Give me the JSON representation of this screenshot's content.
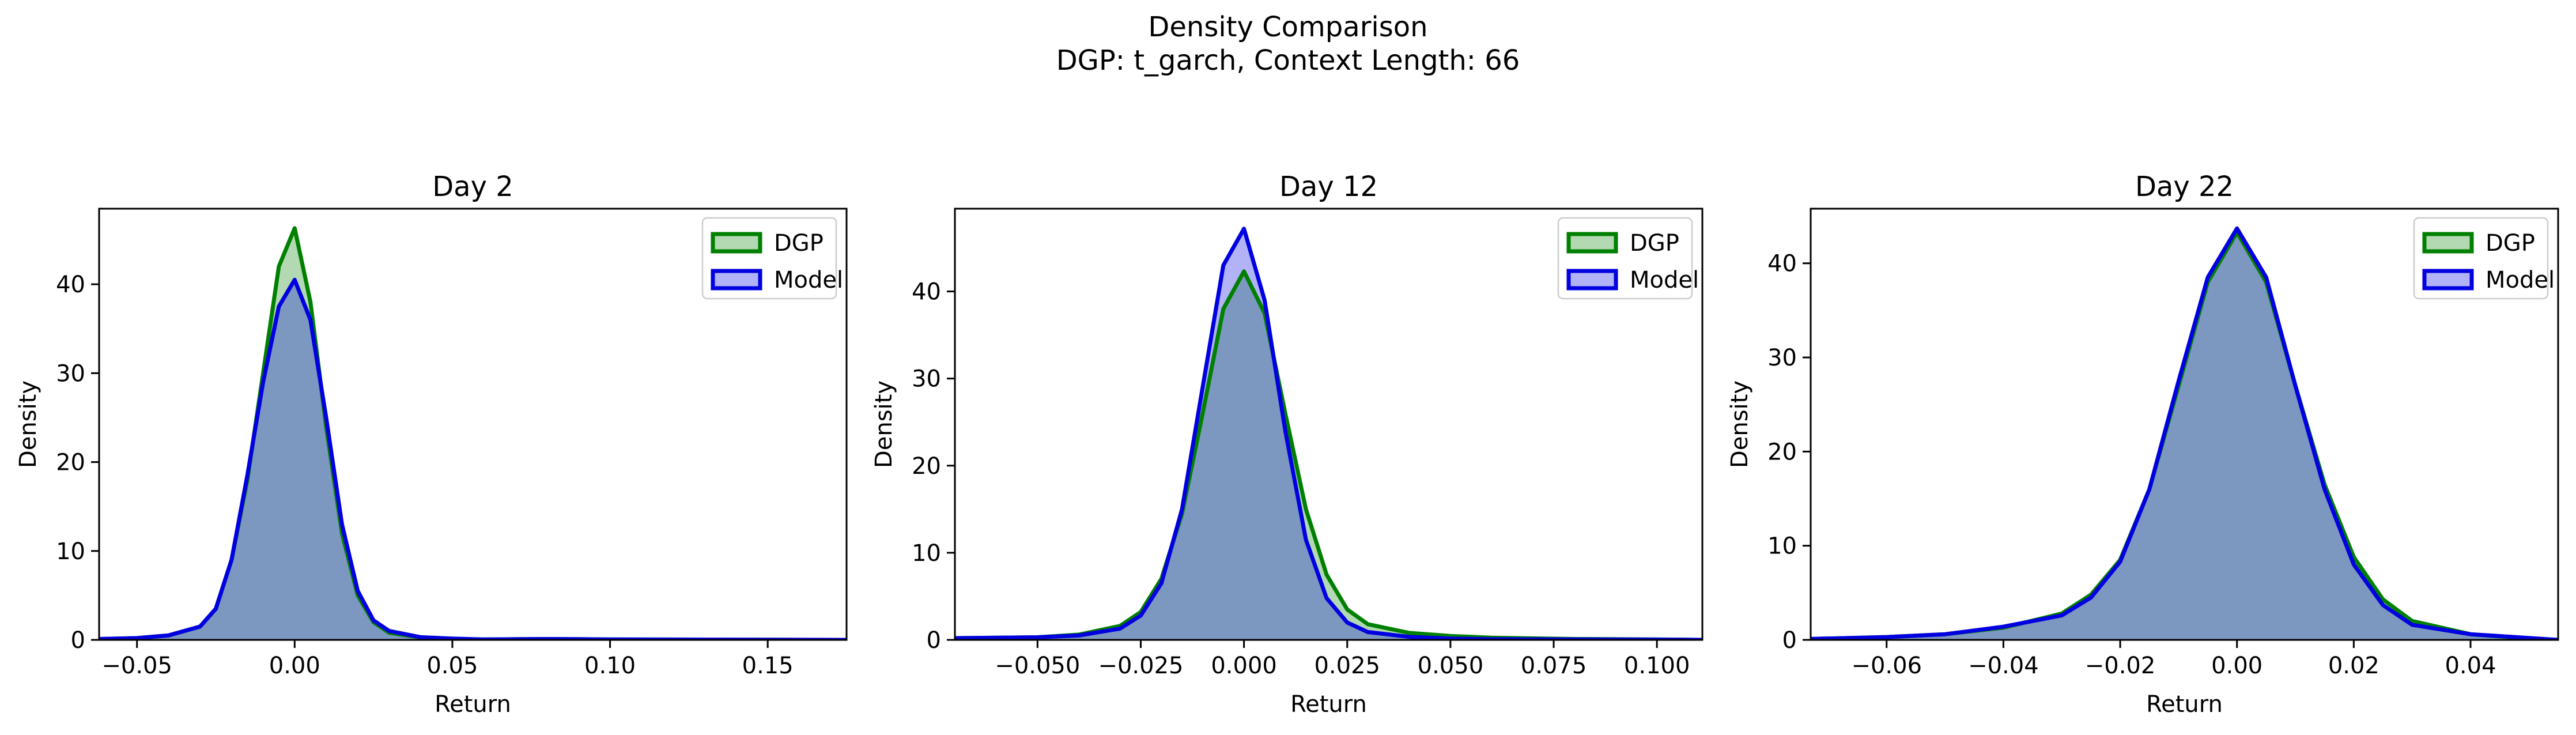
{
  "figure": {
    "title": "Density Comparison",
    "subtitle": "DGP: t_garch, Context Length: 66"
  },
  "colors": {
    "dgp": "#008000",
    "model": "#0000e0",
    "overlap": "#7f99cc"
  },
  "chart_data": [
    {
      "type": "area",
      "title": "Day 2",
      "xlabel": "Return",
      "ylabel": "Density",
      "xlim": [
        -0.062,
        0.175
      ],
      "ylim": [
        0,
        48.5
      ],
      "xticks": [
        -0.05,
        0.0,
        0.05,
        0.1,
        0.15
      ],
      "xtick_labels": [
        "−0.05",
        "0.00",
        "0.05",
        "0.10",
        "0.15"
      ],
      "yticks": [
        0,
        10,
        20,
        30,
        40
      ],
      "ytick_labels": [
        "0",
        "10",
        "20",
        "30",
        "40"
      ],
      "legend": "top-right",
      "series": [
        {
          "name": "DGP",
          "x": [
            -0.062,
            -0.05,
            -0.04,
            -0.03,
            -0.025,
            -0.02,
            -0.015,
            -0.01,
            -0.005,
            0.0,
            0.005,
            0.01,
            0.015,
            0.02,
            0.025,
            0.03,
            0.04,
            0.05,
            0.06,
            0.08,
            0.1,
            0.13,
            0.175
          ],
          "y": [
            0.1,
            0.2,
            0.5,
            1.5,
            3.5,
            9.0,
            18.0,
            30.0,
            42.0,
            46.3,
            38.0,
            24.0,
            12.0,
            5.0,
            2.0,
            0.8,
            0.25,
            0.1,
            0.05,
            0.1,
            0.05,
            0.03,
            0.0
          ]
        },
        {
          "name": "Model",
          "x": [
            -0.062,
            -0.05,
            -0.04,
            -0.03,
            -0.025,
            -0.02,
            -0.015,
            -0.01,
            -0.005,
            0.0,
            0.005,
            0.01,
            0.015,
            0.02,
            0.025,
            0.03,
            0.04,
            0.05,
            0.06,
            0.08,
            0.1,
            0.13,
            0.175
          ],
          "y": [
            0.1,
            0.2,
            0.5,
            1.5,
            3.5,
            9.0,
            18.5,
            29.0,
            37.5,
            40.5,
            36.0,
            25.0,
            13.0,
            5.5,
            2.2,
            1.0,
            0.3,
            0.15,
            0.05,
            0.1,
            0.05,
            0.03,
            0.0
          ]
        }
      ]
    },
    {
      "type": "area",
      "title": "Day 12",
      "xlabel": "Return",
      "ylabel": "Density",
      "xlim": [
        -0.07,
        0.111
      ],
      "ylim": [
        0,
        49.5
      ],
      "xticks": [
        -0.05,
        -0.025,
        0.0,
        0.025,
        0.05,
        0.075,
        0.1
      ],
      "xtick_labels": [
        "−0.050",
        "−0.025",
        "0.000",
        "0.025",
        "0.050",
        "0.075",
        "0.100"
      ],
      "yticks": [
        0,
        10,
        20,
        30,
        40
      ],
      "ytick_labels": [
        "0",
        "10",
        "20",
        "30",
        "40"
      ],
      "legend": "top-right",
      "series": [
        {
          "name": "DGP",
          "x": [
            -0.07,
            -0.05,
            -0.04,
            -0.03,
            -0.025,
            -0.02,
            -0.015,
            -0.01,
            -0.005,
            0.0,
            0.005,
            0.01,
            0.015,
            0.02,
            0.025,
            0.03,
            0.04,
            0.05,
            0.06,
            0.08,
            0.1,
            0.111
          ],
          "y": [
            0.2,
            0.3,
            0.6,
            1.6,
            3.2,
            7.0,
            14.5,
            26.0,
            38.0,
            42.3,
            37.5,
            26.0,
            15.0,
            7.5,
            3.5,
            1.8,
            0.8,
            0.45,
            0.25,
            0.1,
            0.05,
            0.0
          ]
        },
        {
          "name": "Model",
          "x": [
            -0.07,
            -0.05,
            -0.04,
            -0.03,
            -0.025,
            -0.02,
            -0.015,
            -0.01,
            -0.005,
            0.0,
            0.005,
            0.01,
            0.015,
            0.02,
            0.025,
            0.03,
            0.04,
            0.05,
            0.06,
            0.08,
            0.1,
            0.111
          ],
          "y": [
            0.2,
            0.3,
            0.5,
            1.3,
            2.8,
            6.5,
            15.0,
            29.0,
            43.0,
            47.2,
            39.0,
            24.0,
            11.5,
            4.8,
            2.0,
            0.9,
            0.35,
            0.15,
            0.08,
            0.05,
            0.03,
            0.0
          ]
        }
      ]
    },
    {
      "type": "area",
      "title": "Day 22",
      "xlabel": "Return",
      "ylabel": "Density",
      "xlim": [
        -0.073,
        0.055
      ],
      "ylim": [
        0,
        45.8
      ],
      "xticks": [
        -0.06,
        -0.04,
        -0.02,
        0.0,
        0.02,
        0.04
      ],
      "xtick_labels": [
        "−0.06",
        "−0.04",
        "−0.02",
        "0.00",
        "0.02",
        "0.04"
      ],
      "yticks": [
        0,
        10,
        20,
        30,
        40
      ],
      "ytick_labels": [
        "0",
        "10",
        "20",
        "30",
        "40"
      ],
      "legend": "top-right",
      "series": [
        {
          "name": "DGP",
          "x": [
            -0.073,
            -0.06,
            -0.05,
            -0.04,
            -0.03,
            -0.025,
            -0.02,
            -0.015,
            -0.01,
            -0.005,
            0.0,
            0.005,
            0.01,
            0.015,
            0.02,
            0.025,
            0.03,
            0.04,
            0.05,
            0.055
          ],
          "y": [
            0.1,
            0.3,
            0.6,
            1.3,
            2.8,
            4.8,
            8.5,
            16.0,
            27.0,
            38.0,
            43.3,
            38.0,
            27.0,
            16.5,
            8.8,
            4.3,
            2.0,
            0.6,
            0.15,
            0.0
          ]
        },
        {
          "name": "Model",
          "x": [
            -0.073,
            -0.06,
            -0.05,
            -0.04,
            -0.03,
            -0.025,
            -0.02,
            -0.015,
            -0.01,
            -0.005,
            0.0,
            0.005,
            0.01,
            0.015,
            0.02,
            0.025,
            0.03,
            0.04,
            0.05,
            0.055
          ],
          "y": [
            0.1,
            0.3,
            0.6,
            1.4,
            2.6,
            4.5,
            8.3,
            16.0,
            27.5,
            38.5,
            43.7,
            38.5,
            27.0,
            16.0,
            8.0,
            3.7,
            1.6,
            0.6,
            0.2,
            0.0
          ]
        }
      ]
    }
  ]
}
